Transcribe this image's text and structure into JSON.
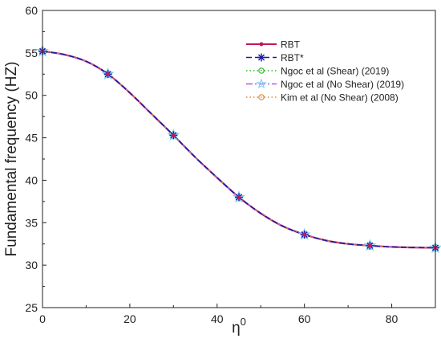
{
  "chart_data": {
    "type": "line",
    "title": "",
    "xlabel": "η",
    "xlabel_superscript": "0",
    "ylabel": "Fundamental frequency (HZ)",
    "xlim": [
      0,
      90
    ],
    "ylim": [
      25,
      60
    ],
    "xticks": [
      0,
      20,
      40,
      60,
      80
    ],
    "yticks": [
      25,
      30,
      35,
      40,
      45,
      50,
      55,
      60
    ],
    "xtick_labels": [
      "0",
      "20",
      "40",
      "60",
      "80"
    ],
    "ytick_labels": [
      "25",
      "30",
      "35",
      "40",
      "45",
      "50",
      "55",
      "60"
    ],
    "grid": false,
    "legend_position": "top-right",
    "x": [
      0,
      15,
      30,
      45,
      60,
      75,
      90
    ],
    "curve": {
      "x": [
        0,
        5,
        10,
        15,
        20,
        25,
        30,
        35,
        40,
        45,
        50,
        55,
        60,
        65,
        70,
        75,
        80,
        85,
        90
      ],
      "y": [
        55.2,
        54.8,
        54.0,
        52.5,
        50.3,
        47.8,
        45.3,
        42.7,
        40.3,
        38.0,
        36.1,
        34.6,
        33.6,
        32.9,
        32.5,
        32.3,
        32.15,
        32.08,
        32.05
      ]
    },
    "series": [
      {
        "name": "RBT",
        "values": [
          55.2,
          52.5,
          45.3,
          38.0,
          33.6,
          32.3,
          32.05
        ],
        "color": "#c2185b",
        "marker": "filled-circle",
        "dash": "solid"
      },
      {
        "name": "RBT*",
        "values": [
          55.2,
          52.5,
          45.3,
          38.0,
          33.6,
          32.3,
          32.05
        ],
        "color": "#1a1aa6",
        "marker": "asterisk",
        "dash": "dashed"
      },
      {
        "name": "Ngoc et al (Shear) (2019)",
        "values": [
          55.2,
          52.5,
          45.3,
          38.0,
          33.6,
          32.3,
          32.05
        ],
        "color": "#2db82d",
        "marker": "open-circle",
        "dash": "dotted"
      },
      {
        "name": "Ngoc et al (No Shear) (2019)",
        "values": [
          55.2,
          52.5,
          45.3,
          38.0,
          33.6,
          32.3,
          32.05
        ],
        "color": "#b05ae0",
        "marker": "star",
        "dash": "dashdot"
      },
      {
        "name": "Kim et al (No Shear) (2008)",
        "values": [
          55.2,
          52.5,
          45.3,
          38.0,
          33.6,
          32.3,
          32.05
        ],
        "color": "#e08a2a",
        "marker": "open-circle",
        "dash": "dotted"
      }
    ],
    "marker_overlay_color": "#7fd3f2"
  }
}
